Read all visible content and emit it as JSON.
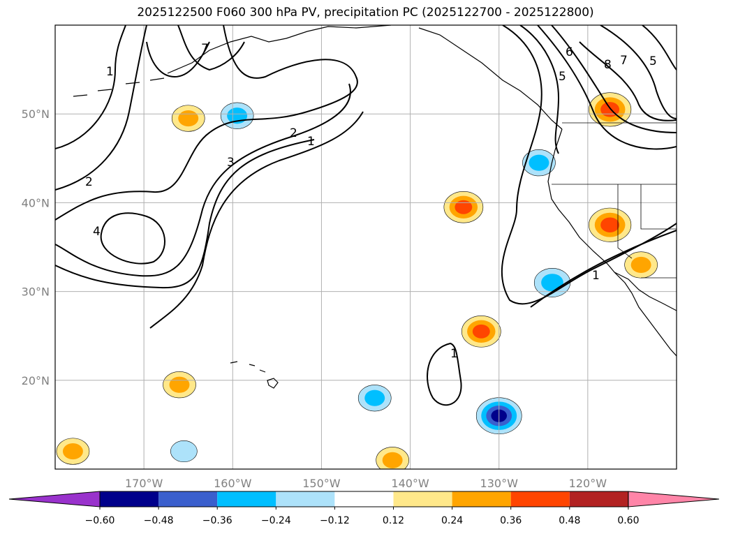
{
  "chart_data": {
    "type": "map",
    "title": "2025122500 F060 300 hPa PV, precipitation PC (2025122700 - 2025122800)",
    "lon_range": [
      -180,
      -110
    ],
    "lat_range": [
      10,
      60
    ],
    "grid": true,
    "lon_ticks": [
      {
        "value": -170,
        "label": "170°W"
      },
      {
        "value": -160,
        "label": "160°W"
      },
      {
        "value": -150,
        "label": "150°W"
      },
      {
        "value": -140,
        "label": "140°W"
      },
      {
        "value": -130,
        "label": "130°W"
      },
      {
        "value": -120,
        "label": "120°W"
      }
    ],
    "lat_ticks": [
      {
        "value": 20,
        "label": "20°N"
      },
      {
        "value": 30,
        "label": "30°N"
      },
      {
        "value": 40,
        "label": "40°N"
      },
      {
        "value": 50,
        "label": "50°N"
      }
    ],
    "colorbar": {
      "levels": [
        -0.6,
        -0.48,
        -0.36,
        -0.24,
        -0.12,
        0.12,
        0.24,
        0.36,
        0.48,
        0.6
      ],
      "tick_labels": [
        "−0.60",
        "−0.48",
        "−0.36",
        "−0.24",
        "−0.12",
        "0.12",
        "0.24",
        "0.36",
        "0.48",
        "0.60"
      ],
      "colors": [
        "#9932CC",
        "#00008B",
        "#3A5FCD",
        "#00BFFF",
        "#ADE2FA",
        "#FFFFFF",
        "#FFE88A",
        "#FFA500",
        "#FF4500",
        "#B22222",
        "#FF85A8"
      ],
      "extend": "both"
    },
    "pv_contours": [
      {
        "value": 1,
        "label": "1"
      },
      {
        "value": 2,
        "label": "2"
      },
      {
        "value": 3,
        "label": "3"
      },
      {
        "value": 4,
        "label": "4"
      },
      {
        "value": 5,
        "label": "5"
      },
      {
        "value": 6,
        "label": "6"
      },
      {
        "value": 7,
        "label": "7"
      },
      {
        "value": 8,
        "label": "8"
      }
    ],
    "precip_anomalies": [
      {
        "lon": -165,
        "lat": 49.5,
        "value": 0.3
      },
      {
        "lon": -159.5,
        "lat": 49.8,
        "value": -0.3
      },
      {
        "lon": -134,
        "lat": 39.5,
        "value": 0.4
      },
      {
        "lon": -125.5,
        "lat": 44.5,
        "value": -0.3
      },
      {
        "lon": -117.5,
        "lat": 50.5,
        "value": 0.45
      },
      {
        "lon": -117.5,
        "lat": 37.5,
        "value": 0.45
      },
      {
        "lon": -114,
        "lat": 33,
        "value": 0.3
      },
      {
        "lon": -124,
        "lat": 31,
        "value": -0.35
      },
      {
        "lon": -132,
        "lat": 25.5,
        "value": 0.4
      },
      {
        "lon": -130,
        "lat": 16,
        "value": -0.5
      },
      {
        "lon": -144,
        "lat": 18,
        "value": -0.3
      },
      {
        "lon": -166,
        "lat": 19.5,
        "value": 0.3
      },
      {
        "lon": -178,
        "lat": 12,
        "value": 0.3
      },
      {
        "lon": -142,
        "lat": 11,
        "value": 0.3
      },
      {
        "lon": -165.5,
        "lat": 12,
        "value": -0.2
      }
    ]
  }
}
